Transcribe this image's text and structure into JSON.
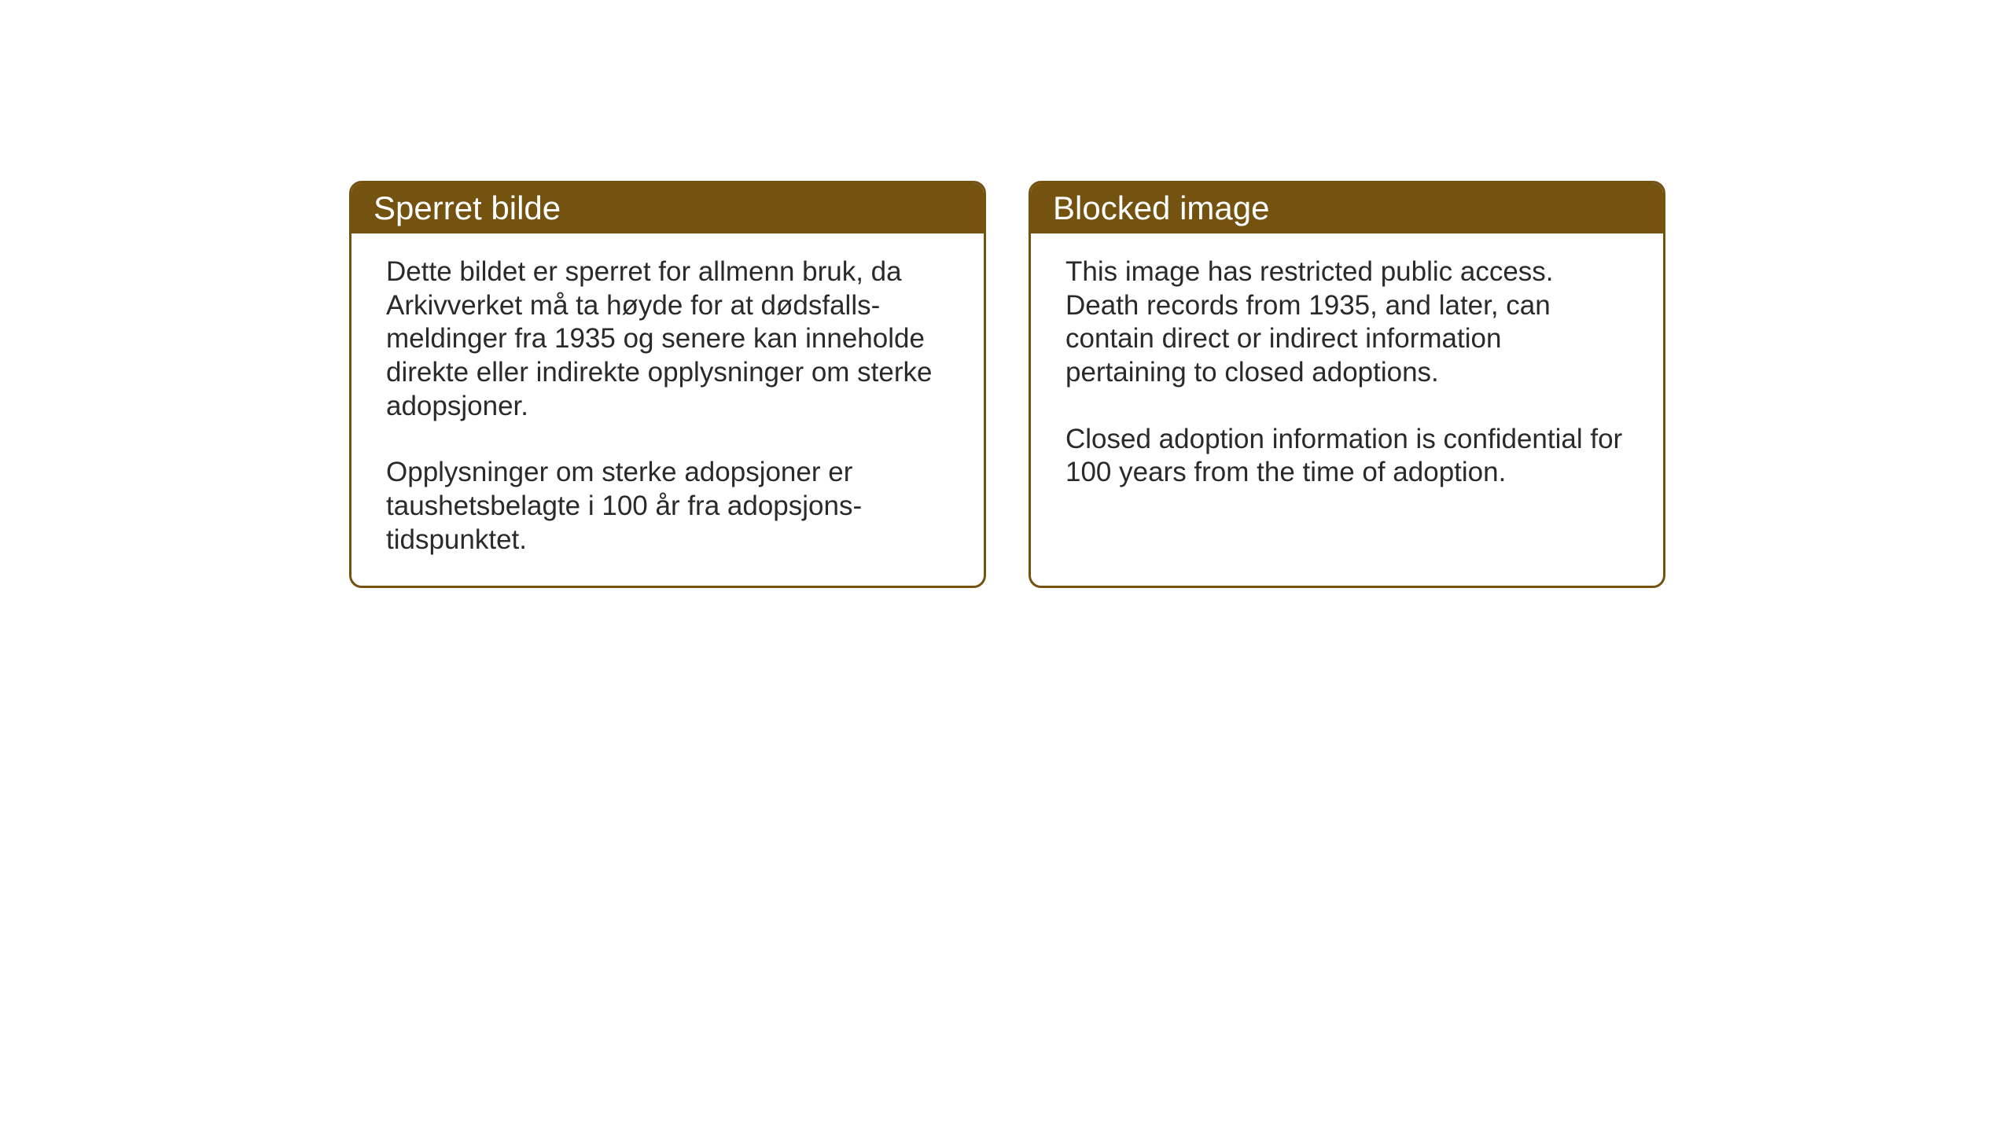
{
  "layout": {
    "background_color": "#ffffff",
    "card_border_color": "#745210",
    "header_background_color": "#745210",
    "header_text_color": "#ffffff",
    "body_text_color": "#2a2a2a",
    "card_border_radius": 16,
    "card_border_width": 3,
    "header_fontsize": 42,
    "body_fontsize": 35
  },
  "cards": {
    "norwegian": {
      "title": "Sperret bilde",
      "paragraph1": "Dette bildet er sperret for allmenn bruk, da Arkivverket må ta høyde for at dødsfalls-meldinger fra 1935 og senere kan inneholde direkte eller indirekte opplysninger om sterke adopsjoner.",
      "paragraph2": "Opplysninger om sterke adopsjoner er taushetsbelagte i 100 år fra adopsjons-tidspunktet."
    },
    "english": {
      "title": "Blocked image",
      "paragraph1": "This image has restricted public access. Death records from 1935, and later, can contain direct or indirect information pertaining to closed adoptions.",
      "paragraph2": "Closed adoption information is confidential for 100 years from the time of adoption."
    }
  }
}
